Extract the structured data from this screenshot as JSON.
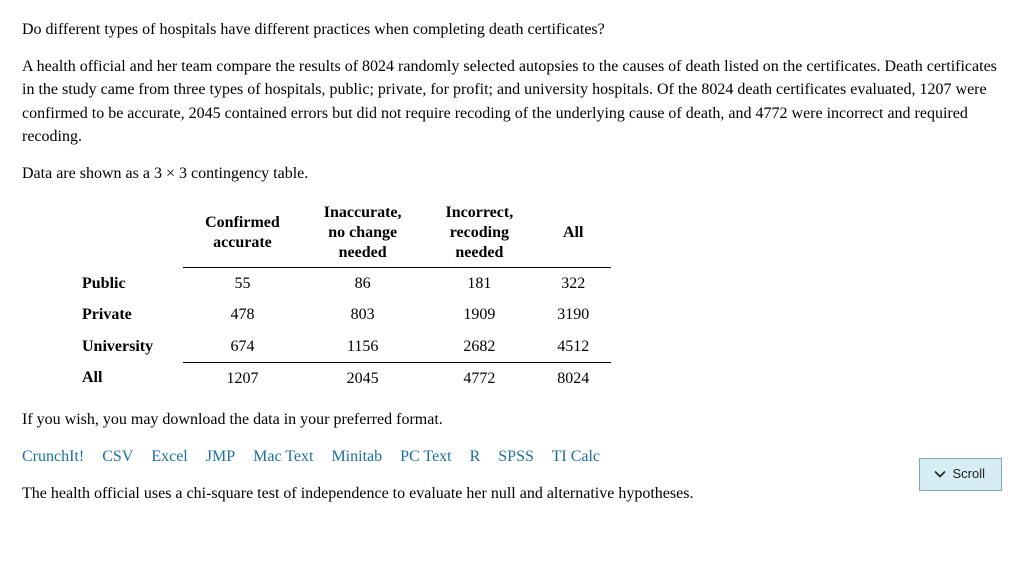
{
  "intro": {
    "question": "Do different types of hospitals have different practices when completing death certificates?",
    "para": "A health official and her team compare the results of 8024 randomly selected autopsies to the causes of death listed on the certificates. Death certificates in the study came from three types of hospitals, public; private, for profit; and university hospitals. Of the 8024 death certificates evaluated, 1207 were confirmed to be accurate, 2045 contained errors but did not require recoding of the underlying cause of death, and 4772 were incorrect and required recoding.",
    "table_desc_prefix": "Data are shown as a ",
    "table_desc_dims": "3 × 3",
    "table_desc_suffix": " contingency table."
  },
  "table": {
    "columns": [
      "",
      "Confirmed accurate",
      "Inaccurate, no change needed",
      "Incorrect, recoding needed",
      "All"
    ],
    "col_br": [
      "",
      "Confirmed<br>accurate",
      "Inaccurate,<br>no change<br>needed",
      "Incorrect,<br>recoding<br>needed",
      "All"
    ],
    "rows": [
      {
        "label": "Public",
        "c1": 55,
        "c2": 86,
        "c3": 181,
        "c4": 322
      },
      {
        "label": "Private",
        "c1": 478,
        "c2": 803,
        "c3": 1909,
        "c4": 3190
      },
      {
        "label": "University",
        "c1": 674,
        "c2": 1156,
        "c3": 2682,
        "c4": 4512
      }
    ],
    "total": {
      "label": "All",
      "c1": 1207,
      "c2": 2045,
      "c3": 4772,
      "c4": 8024
    }
  },
  "download": {
    "text": "If you wish, you may download the data in your preferred format.",
    "links": [
      "CrunchIt!",
      "CSV",
      "Excel",
      "JMP",
      "Mac Text",
      "Minitab",
      "PC Text",
      "R",
      "SPSS",
      "TI Calc"
    ],
    "link_color": "#1a6fa3"
  },
  "conclusion": "The health official uses a chi-square test of independence to evaluate her null and alternative hypotheses.",
  "scroll": {
    "label": "Scroll",
    "bg": "#d6edf3",
    "border": "#7fa8b5"
  }
}
